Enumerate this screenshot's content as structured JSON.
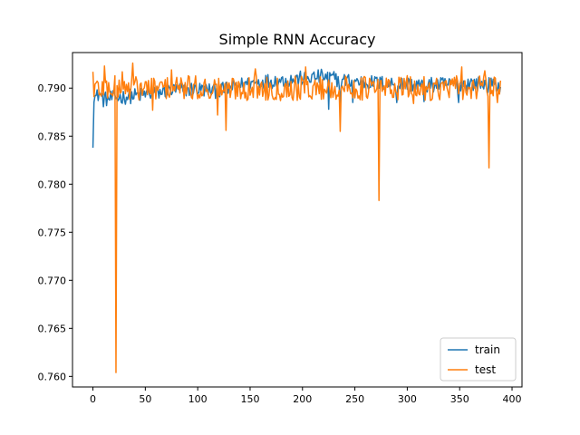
{
  "chart_data": {
    "type": "line",
    "title": "Simple RNN Accuracy",
    "xlabel": "",
    "ylabel": "",
    "xlim": [
      -19.5,
      409.5
    ],
    "ylim": [
      0.7589,
      0.7937
    ],
    "xticks": [
      0,
      50,
      100,
      150,
      200,
      250,
      300,
      350,
      400
    ],
    "yticks": [
      0.76,
      0.765,
      0.77,
      0.775,
      0.78,
      0.785,
      0.79
    ],
    "ytick_labels": [
      "0.760",
      "0.765",
      "0.770",
      "0.775",
      "0.780",
      "0.785",
      "0.790"
    ],
    "grid": false,
    "legend": {
      "placement": "lower-right"
    },
    "n_points": 390,
    "series": [
      {
        "name": "train",
        "color": "#1f77b4",
        "keypoints": [
          [
            0,
            0.7838
          ],
          [
            1,
            0.7893
          ],
          [
            3,
            0.789
          ],
          [
            6,
            0.7895
          ],
          [
            10,
            0.7888
          ],
          [
            20,
            0.789
          ],
          [
            40,
            0.7892
          ],
          [
            60,
            0.7895
          ],
          [
            80,
            0.7898
          ],
          [
            100,
            0.7899
          ],
          [
            120,
            0.7897
          ],
          [
            140,
            0.7903
          ],
          [
            160,
            0.7907
          ],
          [
            180,
            0.7908
          ],
          [
            200,
            0.791
          ],
          [
            220,
            0.7912
          ],
          [
            240,
            0.7908
          ],
          [
            260,
            0.7906
          ],
          [
            280,
            0.7905
          ],
          [
            300,
            0.7904
          ],
          [
            320,
            0.7903
          ],
          [
            340,
            0.7904
          ],
          [
            360,
            0.7905
          ],
          [
            380,
            0.7903
          ],
          [
            389,
            0.7902
          ]
        ],
        "noise": 0.0008,
        "dips": [
          [
            225,
            0.7878
          ],
          [
            236,
            0.7885
          ],
          [
            248,
            0.7885
          ],
          [
            290,
            0.7885
          ],
          [
            316,
            0.7886
          ],
          [
            349,
            0.7885
          ]
        ]
      },
      {
        "name": "test",
        "color": "#ff7f0e",
        "keypoints": [
          [
            0,
            0.79
          ],
          [
            389,
            0.79
          ]
        ],
        "noise": 0.0013,
        "spikes": [
          [
            0,
            0.7917
          ],
          [
            6,
            0.7893
          ],
          [
            11,
            0.7923
          ],
          [
            22,
            0.7604
          ],
          [
            28,
            0.7917
          ],
          [
            38,
            0.7926
          ],
          [
            57,
            0.7877
          ],
          [
            75,
            0.7919
          ],
          [
            119,
            0.7872
          ],
          [
            127,
            0.7856
          ],
          [
            155,
            0.792
          ],
          [
            203,
            0.7922
          ],
          [
            236,
            0.7855
          ],
          [
            273,
            0.7783
          ],
          [
            306,
            0.7884
          ],
          [
            352,
            0.7922
          ],
          [
            374,
            0.7918
          ],
          [
            378,
            0.7817
          ],
          [
            386,
            0.7885
          ]
        ]
      }
    ]
  }
}
